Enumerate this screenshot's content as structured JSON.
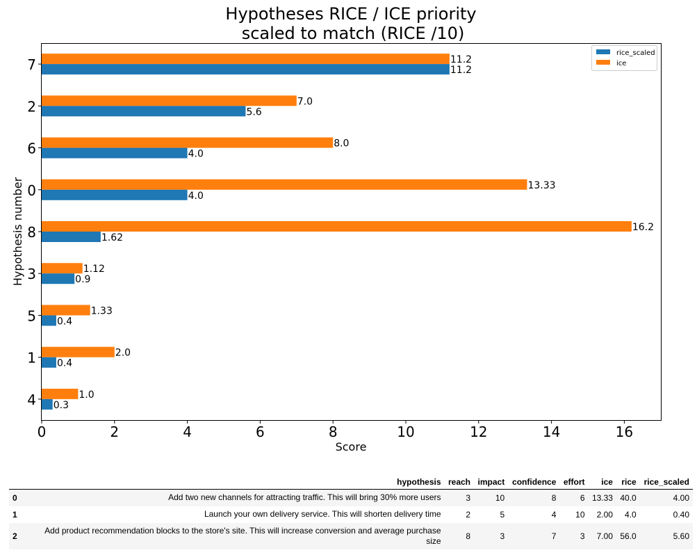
{
  "chart_data": {
    "type": "bar",
    "orientation": "horizontal",
    "title": "Hypotheses RICE / ICE priority\n scaled to match (RICE /10)",
    "xlabel": "Score",
    "ylabel": "Hypothesis number",
    "categories": [
      "4",
      "1",
      "5",
      "3",
      "8",
      "0",
      "6",
      "2",
      "7"
    ],
    "series": [
      {
        "name": "rice_scaled",
        "color": "#1f77b4",
        "values": [
          0.3,
          0.4,
          0.4,
          0.9,
          1.62,
          4.0,
          4.0,
          5.6,
          11.2
        ],
        "labels": [
          "0.3",
          "0.4",
          "0.4",
          "0.9",
          "1.62",
          "4.0",
          "4.0",
          "5.6",
          "11.2"
        ]
      },
      {
        "name": "ice",
        "color": "#ff7f0e",
        "values": [
          1.0,
          2.0,
          1.33,
          1.12,
          16.2,
          13.33,
          8.0,
          7.0,
          11.2
        ],
        "labels": [
          "1.0",
          "2.0",
          "1.33",
          "1.12",
          "16.2",
          "13.33",
          "8.0",
          "7.0",
          "11.2"
        ]
      }
    ],
    "xlim": [
      0,
      17
    ],
    "xticks": [
      0,
      2,
      4,
      6,
      8,
      10,
      12,
      14,
      16
    ],
    "legend": "top-right",
    "grid": false
  },
  "table": {
    "columns": [
      "hypothesis",
      "reach",
      "impact",
      "confidence",
      "effort",
      "ice",
      "rice",
      "rice_scaled"
    ],
    "rows": [
      {
        "index": "0",
        "hypothesis": "Add two new channels for attracting traffic. This will bring 30% more users",
        "reach": "3",
        "impact": "10",
        "confidence": "8",
        "effort": "6",
        "ice": "13.33",
        "rice": "40.0",
        "rice_scaled": "4.00"
      },
      {
        "index": "1",
        "hypothesis": "Launch your own delivery service. This will shorten delivery time",
        "reach": "2",
        "impact": "5",
        "confidence": "4",
        "effort": "10",
        "ice": "2.00",
        "rice": "4.0",
        "rice_scaled": "0.40"
      },
      {
        "index": "2",
        "hypothesis": "Add product recommendation blocks to the store's site. This will increase conversion and average purchase size",
        "reach": "8",
        "impact": "3",
        "confidence": "7",
        "effort": "3",
        "ice": "7.00",
        "rice": "56.0",
        "rice_scaled": "5.60"
      }
    ]
  }
}
